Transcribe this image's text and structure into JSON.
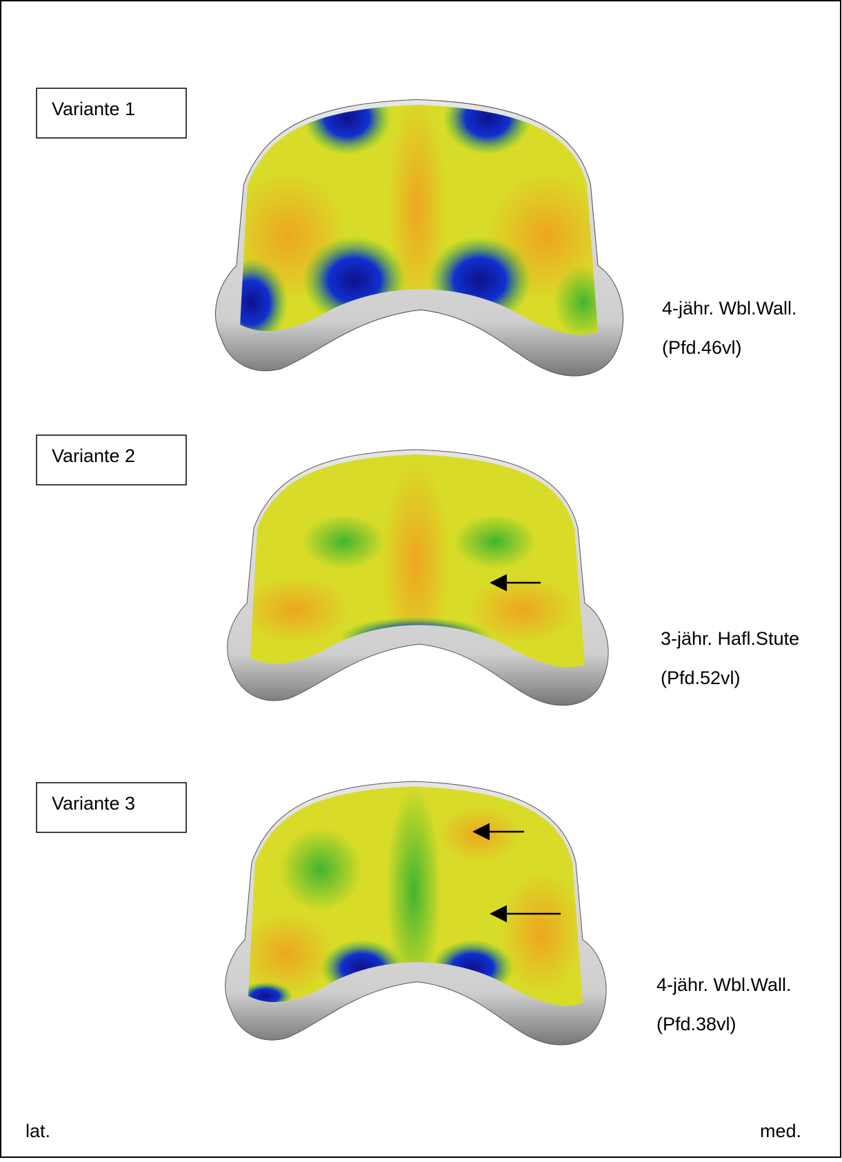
{
  "figure": {
    "panels": [
      {
        "variant": "Variante 1",
        "description": "4-jähr. Wbl.Wall.",
        "specimen": "(Pfd.46vl)"
      },
      {
        "variant": "Variante 2",
        "description": "3-jähr. Hafl.Stute",
        "specimen": "(Pfd.52vl)"
      },
      {
        "variant": "Variante 3",
        "description": "4-jähr. Wbl.Wall.",
        "specimen": "(Pfd.38vl)"
      }
    ],
    "left_side": "lat.",
    "right_side": "med."
  }
}
